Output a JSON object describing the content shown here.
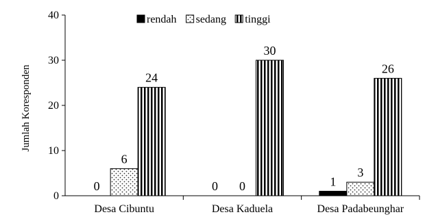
{
  "chart_data": {
    "type": "bar",
    "title": "",
    "xlabel": "",
    "ylabel": "Jumlah Koresponden",
    "ylim": [
      0,
      40
    ],
    "yticks": [
      0,
      10,
      20,
      30,
      40
    ],
    "categories": [
      "Desa Cibuntu",
      "Desa Kaduela",
      "Desa Padabeunghar"
    ],
    "series": [
      {
        "name": "rendah",
        "values": [
          0,
          0,
          1
        ],
        "pattern": "solid-black"
      },
      {
        "name": "sedang",
        "values": [
          6,
          0,
          3
        ],
        "pattern": "dots"
      },
      {
        "name": "tinggi",
        "values": [
          24,
          30,
          26
        ],
        "pattern": "vertical-stripes"
      }
    ],
    "legend_position": "top",
    "grid": false,
    "data_labels": true
  }
}
